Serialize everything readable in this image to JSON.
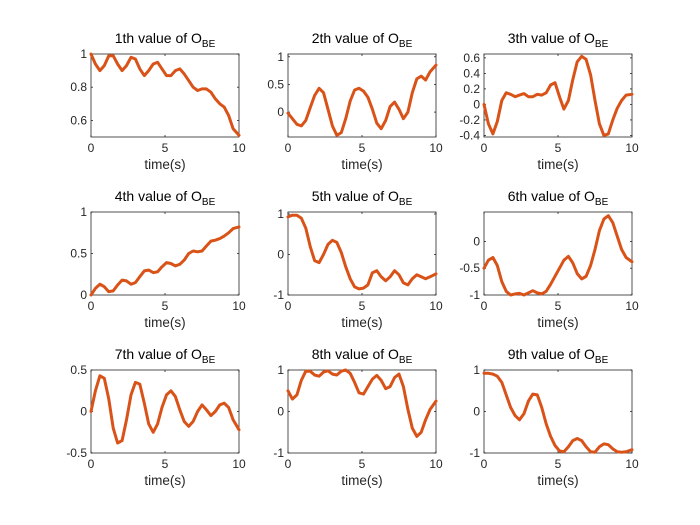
{
  "figure": {
    "line_color": "#D95319",
    "axes_color": "#262626",
    "background": "#ffffff"
  },
  "chart_data": [
    {
      "type": "line",
      "title": "1th value of O",
      "title_subscript": "BE",
      "xlabel": "time(s)",
      "ylabel": "",
      "xlim": [
        0,
        10
      ],
      "ylim": [
        0.5,
        1
      ],
      "xticks": [
        0,
        5,
        10
      ],
      "xtick_labels": [
        "0",
        "5",
        "10"
      ],
      "yticks": [
        0.6,
        0.8,
        1
      ],
      "ytick_labels": [
        "0.6",
        "0.8",
        "1"
      ],
      "grid": false,
      "series": [
        {
          "x": [
            0,
            0.3,
            0.6,
            0.9,
            1.2,
            1.5,
            1.8,
            2.1,
            2.4,
            2.7,
            3.0,
            3.3,
            3.6,
            3.9,
            4.2,
            4.5,
            4.8,
            5.1,
            5.4,
            5.7,
            6.0,
            6.3,
            6.6,
            6.9,
            7.2,
            7.5,
            7.8,
            8.1,
            8.4,
            8.7,
            9.0,
            9.3,
            9.6,
            10.0
          ],
          "values": [
            1.0,
            0.94,
            0.9,
            0.93,
            0.99,
            0.99,
            0.94,
            0.9,
            0.93,
            0.98,
            0.97,
            0.91,
            0.87,
            0.9,
            0.94,
            0.95,
            0.91,
            0.87,
            0.87,
            0.9,
            0.91,
            0.88,
            0.84,
            0.8,
            0.78,
            0.79,
            0.79,
            0.77,
            0.73,
            0.7,
            0.68,
            0.63,
            0.55,
            0.51
          ]
        }
      ]
    },
    {
      "type": "line",
      "title": "2th value of O",
      "title_subscript": "BE",
      "xlabel": "time(s)",
      "ylabel": "",
      "xlim": [
        0,
        10
      ],
      "ylim": [
        -0.45,
        1.05
      ],
      "xticks": [
        0,
        5,
        10
      ],
      "xtick_labels": [
        "0",
        "5",
        "10"
      ],
      "yticks": [
        0,
        0.5,
        1
      ],
      "ytick_labels": [
        "0",
        "0.5",
        "1"
      ],
      "grid": false,
      "series": [
        {
          "x": [
            0,
            0.3,
            0.6,
            0.9,
            1.2,
            1.5,
            1.8,
            2.1,
            2.4,
            2.7,
            3.0,
            3.3,
            3.6,
            3.9,
            4.2,
            4.5,
            4.8,
            5.1,
            5.4,
            5.7,
            6.0,
            6.3,
            6.6,
            6.9,
            7.2,
            7.5,
            7.8,
            8.1,
            8.4,
            8.7,
            9.0,
            9.3,
            9.6,
            10.0
          ],
          "values": [
            -0.02,
            -0.12,
            -0.22,
            -0.25,
            -0.15,
            0.08,
            0.3,
            0.43,
            0.35,
            0.05,
            -0.25,
            -0.42,
            -0.37,
            -0.12,
            0.2,
            0.4,
            0.43,
            0.38,
            0.27,
            0.05,
            -0.2,
            -0.3,
            -0.15,
            0.1,
            0.18,
            0.05,
            -0.12,
            0.0,
            0.35,
            0.6,
            0.65,
            0.58,
            0.73,
            0.85
          ]
        }
      ]
    },
    {
      "type": "line",
      "title": "3th value of O",
      "title_subscript": "BE",
      "xlabel": "time(s)",
      "ylabel": "",
      "xlim": [
        0,
        10
      ],
      "ylim": [
        -0.42,
        0.65
      ],
      "xticks": [
        0,
        5,
        10
      ],
      "xtick_labels": [
        "0",
        "5",
        "10"
      ],
      "yticks": [
        -0.4,
        -0.2,
        0,
        0.2,
        0.4,
        0.6
      ],
      "ytick_labels": [
        "-0.4",
        "-0.2",
        "0",
        "0.2",
        "0.4",
        "0.6"
      ],
      "grid": false,
      "series": [
        {
          "x": [
            0,
            0.3,
            0.6,
            0.9,
            1.2,
            1.5,
            1.8,
            2.1,
            2.4,
            2.7,
            3.0,
            3.3,
            3.6,
            3.9,
            4.2,
            4.5,
            4.8,
            5.1,
            5.4,
            5.7,
            6.0,
            6.3,
            6.6,
            6.9,
            7.2,
            7.5,
            7.8,
            8.1,
            8.4,
            8.7,
            9.0,
            9.3,
            9.6,
            10.0
          ],
          "values": [
            0.0,
            -0.25,
            -0.38,
            -0.22,
            0.05,
            0.15,
            0.13,
            0.1,
            0.12,
            0.14,
            0.1,
            0.1,
            0.13,
            0.12,
            0.15,
            0.25,
            0.28,
            0.1,
            -0.06,
            0.05,
            0.32,
            0.55,
            0.62,
            0.58,
            0.38,
            0.05,
            -0.25,
            -0.4,
            -0.38,
            -0.2,
            -0.05,
            0.05,
            0.12,
            0.13
          ]
        }
      ]
    },
    {
      "type": "line",
      "title": "4th value of O",
      "title_subscript": "BE",
      "xlabel": "time(s)",
      "ylabel": "",
      "xlim": [
        0,
        10
      ],
      "ylim": [
        0,
        1
      ],
      "xticks": [
        0,
        5,
        10
      ],
      "xtick_labels": [
        "0",
        "5",
        "10"
      ],
      "yticks": [
        0,
        0.5,
        1
      ],
      "ytick_labels": [
        "0",
        "0.5",
        "1"
      ],
      "grid": false,
      "series": [
        {
          "x": [
            0,
            0.3,
            0.6,
            0.9,
            1.2,
            1.5,
            1.8,
            2.1,
            2.4,
            2.7,
            3.0,
            3.3,
            3.6,
            3.9,
            4.2,
            4.5,
            4.8,
            5.1,
            5.4,
            5.7,
            6.0,
            6.3,
            6.6,
            6.9,
            7.2,
            7.5,
            7.8,
            8.1,
            8.4,
            8.7,
            9.0,
            9.3,
            9.6,
            10.0
          ],
          "values": [
            0.0,
            0.08,
            0.13,
            0.1,
            0.04,
            0.05,
            0.12,
            0.18,
            0.17,
            0.13,
            0.15,
            0.22,
            0.29,
            0.3,
            0.27,
            0.28,
            0.34,
            0.39,
            0.38,
            0.35,
            0.37,
            0.42,
            0.5,
            0.53,
            0.52,
            0.53,
            0.59,
            0.65,
            0.66,
            0.68,
            0.71,
            0.75,
            0.8,
            0.82
          ]
        }
      ]
    },
    {
      "type": "line",
      "title": "5th value of O",
      "title_subscript": "BE",
      "xlabel": "time(s)",
      "ylabel": "",
      "xlim": [
        0,
        10
      ],
      "ylim": [
        -1,
        1.05
      ],
      "xticks": [
        0,
        5,
        10
      ],
      "xtick_labels": [
        "0",
        "5",
        "10"
      ],
      "yticks": [
        -1,
        0,
        1
      ],
      "ytick_labels": [
        "-1",
        "0",
        "1"
      ],
      "grid": false,
      "series": [
        {
          "x": [
            0,
            0.3,
            0.6,
            0.9,
            1.2,
            1.5,
            1.8,
            2.1,
            2.4,
            2.7,
            3.0,
            3.3,
            3.6,
            3.9,
            4.2,
            4.5,
            4.8,
            5.1,
            5.4,
            5.7,
            6.0,
            6.3,
            6.6,
            6.9,
            7.2,
            7.5,
            7.8,
            8.1,
            8.4,
            8.7,
            9.0,
            9.3,
            9.6,
            10.0
          ],
          "values": [
            0.93,
            0.97,
            0.97,
            0.9,
            0.65,
            0.2,
            -0.15,
            -0.2,
            0.0,
            0.25,
            0.35,
            0.3,
            0.05,
            -0.3,
            -0.6,
            -0.8,
            -0.85,
            -0.83,
            -0.75,
            -0.45,
            -0.4,
            -0.55,
            -0.65,
            -0.55,
            -0.4,
            -0.5,
            -0.7,
            -0.75,
            -0.6,
            -0.5,
            -0.55,
            -0.6,
            -0.55,
            -0.48
          ]
        }
      ]
    },
    {
      "type": "line",
      "title": "6th value of O",
      "title_subscript": "BE",
      "xlabel": "time(s)",
      "ylabel": "",
      "xlim": [
        0,
        10
      ],
      "ylim": [
        -1,
        0.55
      ],
      "xticks": [
        0,
        5,
        10
      ],
      "xtick_labels": [
        "0",
        "5",
        "10"
      ],
      "yticks": [
        -1,
        -0.5,
        0
      ],
      "ytick_labels": [
        "-1",
        "-0.5",
        "0"
      ],
      "grid": false,
      "series": [
        {
          "x": [
            0,
            0.3,
            0.6,
            0.9,
            1.2,
            1.5,
            1.8,
            2.1,
            2.4,
            2.7,
            3.0,
            3.3,
            3.6,
            3.9,
            4.2,
            4.5,
            4.8,
            5.1,
            5.4,
            5.7,
            6.0,
            6.3,
            6.6,
            6.9,
            7.2,
            7.5,
            7.8,
            8.1,
            8.4,
            8.7,
            9.0,
            9.3,
            9.6,
            10.0
          ],
          "values": [
            -0.5,
            -0.35,
            -0.3,
            -0.45,
            -0.75,
            -0.93,
            -1.0,
            -0.98,
            -0.97,
            -1.0,
            -0.96,
            -0.92,
            -0.96,
            -0.98,
            -0.93,
            -0.8,
            -0.65,
            -0.5,
            -0.35,
            -0.28,
            -0.4,
            -0.6,
            -0.7,
            -0.65,
            -0.45,
            -0.15,
            0.2,
            0.42,
            0.48,
            0.35,
            0.1,
            -0.15,
            -0.3,
            -0.38
          ]
        }
      ]
    },
    {
      "type": "line",
      "title": "7th value of O",
      "title_subscript": "BE",
      "xlabel": "time(s)",
      "ylabel": "",
      "xlim": [
        0,
        10
      ],
      "ylim": [
        -0.5,
        0.5
      ],
      "xticks": [
        0,
        5,
        10
      ],
      "xtick_labels": [
        "0",
        "5",
        "10"
      ],
      "yticks": [
        -0.5,
        0,
        0.5
      ],
      "ytick_labels": [
        "-0.5",
        "0",
        "0.5"
      ],
      "grid": false,
      "series": [
        {
          "x": [
            0,
            0.3,
            0.6,
            0.9,
            1.2,
            1.5,
            1.8,
            2.1,
            2.4,
            2.7,
            3.0,
            3.3,
            3.6,
            3.9,
            4.2,
            4.5,
            4.8,
            5.1,
            5.4,
            5.7,
            6.0,
            6.3,
            6.6,
            6.9,
            7.2,
            7.5,
            7.8,
            8.1,
            8.4,
            8.7,
            9.0,
            9.3,
            9.6,
            10.0
          ],
          "values": [
            0.0,
            0.25,
            0.43,
            0.4,
            0.15,
            -0.2,
            -0.38,
            -0.35,
            -0.1,
            0.2,
            0.35,
            0.33,
            0.1,
            -0.15,
            -0.25,
            -0.15,
            0.05,
            0.2,
            0.25,
            0.18,
            0.02,
            -0.12,
            -0.18,
            -0.12,
            0.0,
            0.08,
            0.02,
            -0.05,
            0.0,
            0.08,
            0.1,
            0.05,
            -0.1,
            -0.22
          ]
        }
      ]
    },
    {
      "type": "line",
      "title": "8th value of O",
      "title_subscript": "BE",
      "xlabel": "time(s)",
      "ylabel": "",
      "xlim": [
        0,
        10
      ],
      "ylim": [
        -1,
        1
      ],
      "xticks": [
        0,
        5,
        10
      ],
      "xtick_labels": [
        "0",
        "5",
        "10"
      ],
      "yticks": [
        -1,
        0,
        1
      ],
      "ytick_labels": [
        "-1",
        "0",
        "1"
      ],
      "grid": false,
      "series": [
        {
          "x": [
            0,
            0.3,
            0.6,
            0.9,
            1.2,
            1.5,
            1.8,
            2.1,
            2.4,
            2.7,
            3.0,
            3.3,
            3.6,
            3.9,
            4.2,
            4.5,
            4.8,
            5.1,
            5.4,
            5.7,
            6.0,
            6.3,
            6.6,
            6.9,
            7.2,
            7.5,
            7.8,
            8.1,
            8.4,
            8.7,
            9.0,
            9.3,
            9.6,
            10.0
          ],
          "values": [
            0.5,
            0.3,
            0.4,
            0.75,
            0.97,
            0.97,
            0.88,
            0.85,
            0.95,
            0.98,
            0.9,
            0.88,
            0.97,
            1.0,
            0.92,
            0.7,
            0.45,
            0.42,
            0.6,
            0.78,
            0.87,
            0.75,
            0.55,
            0.6,
            0.82,
            0.9,
            0.6,
            0.05,
            -0.4,
            -0.6,
            -0.5,
            -0.2,
            0.05,
            0.25
          ]
        }
      ]
    },
    {
      "type": "line",
      "title": "9th value of O",
      "title_subscript": "BE",
      "xlabel": "time(s)",
      "ylabel": "",
      "xlim": [
        0,
        10
      ],
      "ylim": [
        -1,
        1
      ],
      "xticks": [
        0,
        5,
        10
      ],
      "xtick_labels": [
        "0",
        "5",
        "10"
      ],
      "yticks": [
        -1,
        0,
        1
      ],
      "ytick_labels": [
        "-1",
        "0",
        "1"
      ],
      "grid": false,
      "series": [
        {
          "x": [
            0,
            0.3,
            0.6,
            0.9,
            1.2,
            1.5,
            1.8,
            2.1,
            2.4,
            2.7,
            3.0,
            3.3,
            3.6,
            3.9,
            4.2,
            4.5,
            4.8,
            5.1,
            5.4,
            5.7,
            6.0,
            6.3,
            6.6,
            6.9,
            7.2,
            7.5,
            7.8,
            8.1,
            8.4,
            8.7,
            9.0,
            9.3,
            9.6,
            10.0
          ],
          "values": [
            0.92,
            0.92,
            0.9,
            0.85,
            0.7,
            0.4,
            0.1,
            -0.1,
            -0.2,
            -0.05,
            0.25,
            0.42,
            0.4,
            0.1,
            -0.3,
            -0.6,
            -0.82,
            -0.95,
            -0.97,
            -0.85,
            -0.7,
            -0.65,
            -0.7,
            -0.85,
            -0.97,
            -0.98,
            -0.85,
            -0.78,
            -0.8,
            -0.9,
            -0.97,
            -0.98,
            -0.97,
            -0.92
          ]
        }
      ]
    }
  ]
}
